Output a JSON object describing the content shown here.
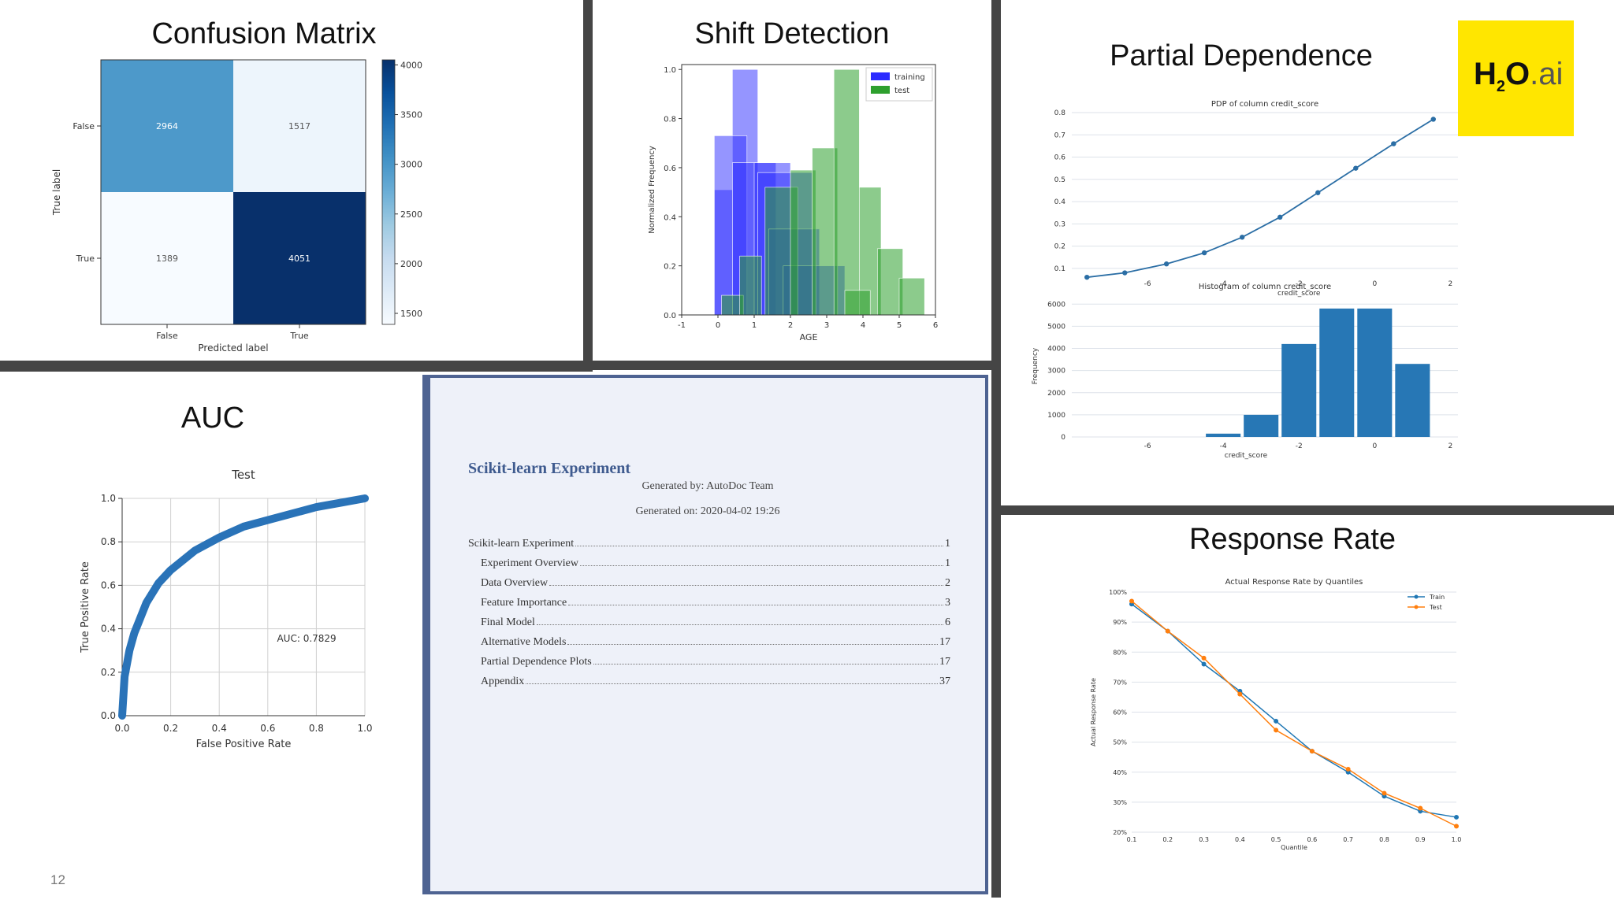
{
  "slide_number": "12",
  "panel_titles": {
    "confusion": "Confusion Matrix",
    "shift": "Shift Detection",
    "pd": "Partial Dependence",
    "auc": "AUC",
    "response": "Response Rate"
  },
  "logo": {
    "h": "H",
    "two": "2",
    "o": "O",
    "dot_ai": ".ai",
    "color": "#ffe600"
  },
  "document": {
    "title": "Scikit-learn Experiment",
    "generated_by": "Generated by: AutoDoc Team",
    "generated_on": "Generated on: 2020-04-02 19:26",
    "toc": [
      {
        "label": "Scikit-learn Experiment",
        "page": "1",
        "level": 0
      },
      {
        "label": "Experiment Overview",
        "page": "1",
        "level": 1
      },
      {
        "label": "Data Overview",
        "page": "2",
        "level": 1
      },
      {
        "label": "Feature Importance",
        "page": "3",
        "level": 1
      },
      {
        "label": "Final Model",
        "page": "6",
        "level": 1
      },
      {
        "label": "Alternative Models",
        "page": "17",
        "level": 1
      },
      {
        "label": "Partial Dependence Plots",
        "page": "17",
        "level": 1
      },
      {
        "label": "Appendix",
        "page": "37",
        "level": 1
      }
    ]
  },
  "chart_data": [
    {
      "id": "confusion",
      "type": "heatmap",
      "ylabel": "True label",
      "xlabel": "Predicted label",
      "row_labels": [
        "False",
        "True"
      ],
      "col_labels": [
        "False",
        "True"
      ],
      "values": [
        [
          2964,
          1517
        ],
        [
          1389,
          4051
        ]
      ],
      "colorbar_ticks": [
        1500,
        2000,
        2500,
        3000,
        3500,
        4000
      ],
      "colormap": "Blues"
    },
    {
      "id": "shift",
      "type": "bar",
      "subtype": "overlapping histogram",
      "xlabel": "AGE",
      "ylabel": "Normalized Frequency",
      "xlim": [
        -1,
        6
      ],
      "ylim": [
        0,
        1.02
      ],
      "xticks": [
        "-1",
        "0",
        "1",
        "2",
        "3",
        "4",
        "5",
        "6"
      ],
      "yticks": [
        "0.0",
        "0.2",
        "0.4",
        "0.6",
        "0.8",
        "1.0"
      ],
      "legend": {
        "position": "top-right",
        "entries": [
          "training",
          "test"
        ]
      },
      "series": [
        {
          "name": "training",
          "color": "#2b2bff",
          "opacity": 0.5,
          "bins": [
            [
              -0.1,
              0.4,
              0.51
            ],
            [
              0.4,
              1.1,
              1.0
            ],
            [
              -0.1,
              0.8,
              0.73
            ],
            [
              0.4,
              1.6,
              0.62
            ],
            [
              1.0,
              2.0,
              0.62
            ],
            [
              1.1,
              2.6,
              0.58
            ],
            [
              1.4,
              2.8,
              0.35
            ],
            [
              1.8,
              3.5,
              0.2
            ]
          ]
        },
        {
          "name": "test",
          "color": "#2ea02e",
          "opacity": 0.55,
          "bins": [
            [
              0.1,
              0.7,
              0.08
            ],
            [
              0.6,
              1.2,
              0.24
            ],
            [
              1.3,
              2.2,
              0.52
            ],
            [
              2.0,
              2.7,
              0.59
            ],
            [
              2.6,
              3.3,
              0.68
            ],
            [
              3.2,
              3.9,
              1.0
            ],
            [
              3.9,
              4.5,
              0.52
            ],
            [
              4.4,
              5.1,
              0.27
            ],
            [
              5.0,
              5.7,
              0.15
            ],
            [
              3.5,
              4.2,
              0.1
            ]
          ]
        }
      ]
    },
    {
      "id": "pd_line",
      "type": "line",
      "title": "PDP of column credit_score",
      "xlabel": "credit_score",
      "xlim": [
        -8,
        2.2
      ],
      "ylim": [
        0.05,
        0.8
      ],
      "xticks": [
        "-6",
        "-4",
        "-2",
        "0",
        "2"
      ],
      "yticks": [
        "0.1",
        "0.2",
        "0.3",
        "0.4",
        "0.5",
        "0.6",
        "0.7",
        "0.8"
      ],
      "x": [
        -7.6,
        -6.6,
        -5.5,
        -4.5,
        -3.5,
        -2.5,
        -1.5,
        -0.5,
        0.5,
        1.55
      ],
      "values": [
        0.06,
        0.08,
        0.12,
        0.17,
        0.24,
        0.33,
        0.44,
        0.55,
        0.66,
        0.77
      ]
    },
    {
      "id": "pd_hist",
      "type": "bar",
      "title": "Histogram of column credit_score",
      "xlabel": "credit_score",
      "ylabel": "Frequency",
      "xlim": [
        -8,
        2.2
      ],
      "ylim": [
        0,
        6400
      ],
      "xticks": [
        "-6",
        "-4",
        "-2",
        "0",
        "2"
      ],
      "yticks": [
        "0",
        "1000",
        "2000",
        "3000",
        "4000",
        "5000",
        "6000"
      ],
      "bin_edges": [
        -4.5,
        -3.5,
        -2.5,
        -1.5,
        -0.5,
        0.5,
        1.5
      ],
      "values": [
        150,
        1000,
        4200,
        5800,
        5800,
        3300
      ]
    },
    {
      "id": "auc",
      "type": "line",
      "title": "Test",
      "xlabel": "False Positive Rate",
      "ylabel": "True Positive Rate",
      "xlim": [
        0,
        1
      ],
      "ylim": [
        0,
        1
      ],
      "xticks": [
        "0.0",
        "0.2",
        "0.4",
        "0.6",
        "0.8",
        "1.0"
      ],
      "yticks": [
        "0.0",
        "0.2",
        "0.4",
        "0.6",
        "0.8",
        "1.0"
      ],
      "annotation": "AUC: 0.7829",
      "x": [
        0,
        0.01,
        0.03,
        0.05,
        0.1,
        0.15,
        0.2,
        0.3,
        0.4,
        0.5,
        0.6,
        0.7,
        0.8,
        0.9,
        1.0
      ],
      "values": [
        0,
        0.18,
        0.3,
        0.38,
        0.52,
        0.61,
        0.67,
        0.76,
        0.82,
        0.87,
        0.9,
        0.93,
        0.96,
        0.98,
        1.0
      ]
    },
    {
      "id": "response",
      "type": "line",
      "title": "Actual Response Rate by Quantiles",
      "xlabel": "Quantile",
      "ylabel": "Actual Response Rate",
      "xlim": [
        0.1,
        1.0
      ],
      "ylim": [
        20,
        100
      ],
      "xticks": [
        "0.1",
        "0.2",
        "0.3",
        "0.4",
        "0.5",
        "0.6",
        "0.7",
        "0.8",
        "0.9",
        "1.0"
      ],
      "yticks": [
        "20%",
        "30%",
        "40%",
        "50%",
        "60%",
        "70%",
        "80%",
        "90%",
        "100%"
      ],
      "legend": {
        "position": "top-right",
        "entries": [
          "Train",
          "Test"
        ]
      },
      "categories": [
        0.1,
        0.2,
        0.3,
        0.4,
        0.5,
        0.6,
        0.7,
        0.8,
        0.9,
        1.0
      ],
      "series": [
        {
          "name": "Train",
          "color": "#1f77b4",
          "values": [
            96,
            87,
            76,
            67,
            57,
            47,
            40,
            32,
            27,
            25
          ]
        },
        {
          "name": "Test",
          "color": "#ff7f0e",
          "values": [
            97,
            87,
            78,
            66,
            54,
            47,
            41,
            33,
            28,
            22
          ]
        }
      ]
    }
  ]
}
